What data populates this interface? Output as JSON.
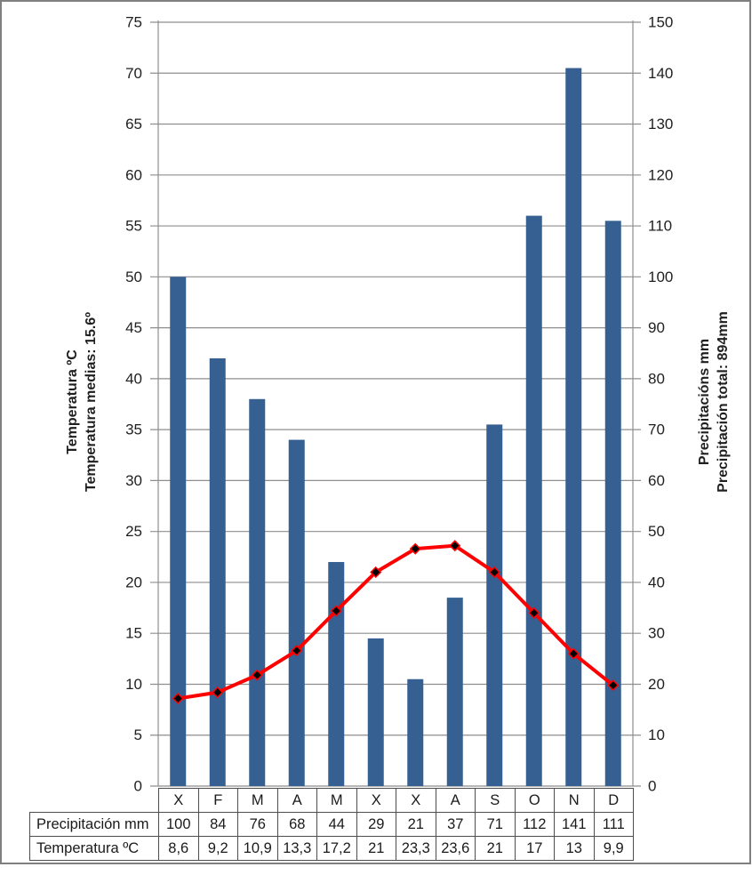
{
  "chart_data": {
    "type": "combo-bar-line",
    "title": "",
    "categories": [
      "X",
      "F",
      "M",
      "A",
      "M",
      "X",
      "X",
      "A",
      "S",
      "O",
      "N",
      "D"
    ],
    "series": [
      {
        "name": "Precipitación mm",
        "type": "bar",
        "axis": "right",
        "color": "#376092",
        "values": [
          100,
          84,
          76,
          68,
          44,
          29,
          21,
          37,
          71,
          112,
          141,
          111
        ],
        "display_values": [
          "100",
          "84",
          "76",
          "68",
          "44",
          "29",
          "21",
          "37",
          "71",
          "112",
          "141",
          "111"
        ]
      },
      {
        "name": "Temperatura ºC",
        "type": "line",
        "axis": "left",
        "color": "#FF0000",
        "marker": "diamond",
        "marker_color": "#000000",
        "values": [
          8.6,
          9.2,
          10.9,
          13.3,
          17.2,
          21,
          23.3,
          23.6,
          21,
          17,
          13,
          9.9
        ],
        "display_values": [
          "8,6",
          "9,2",
          "10,9",
          "13,3",
          "17,2",
          "21",
          "23,3",
          "23,6",
          "21",
          "17",
          "13",
          "9,9"
        ]
      }
    ],
    "left_axis": {
      "title": [
        "Temperatura ºC",
        "Temperatura medias: 15.6º"
      ],
      "min": 0,
      "max": 75,
      "step": 5
    },
    "right_axis": {
      "title": [
        "Precipitacións mm",
        "Precipitación total: 894mm"
      ],
      "min": 0,
      "max": 150,
      "step": 10
    },
    "grid": true,
    "legend": "none",
    "data_table_attached": true,
    "colors": {
      "grid": "#8E8E8E",
      "frame": "#7F7F7F",
      "table_border": "#4D4D4D",
      "text": "#1A1A1A"
    }
  }
}
